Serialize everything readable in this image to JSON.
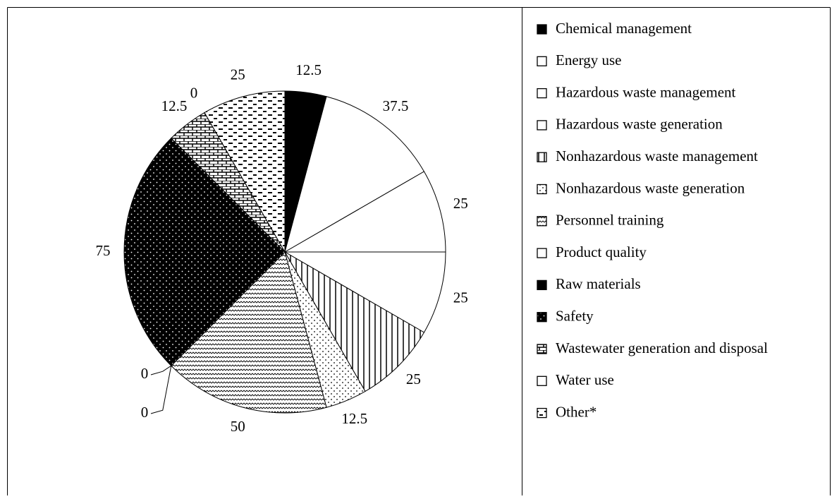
{
  "chart_data": {
    "type": "pie",
    "categories": [
      "Chemical management",
      "Energy use",
      "Hazardous waste management",
      "Hazardous waste generation",
      "Nonhazardous waste management",
      "Nonhazardous waste generation",
      "Personnel training",
      "Product quality",
      "Raw materials",
      "Safety",
      "Wastewater generation and disposal",
      "Water use",
      "Other*"
    ],
    "values": [
      12.5,
      37.5,
      25,
      25,
      25,
      12.5,
      50,
      0,
      0,
      75,
      12.5,
      0,
      25
    ],
    "patterns": [
      "solid",
      "none",
      "none",
      "none",
      "vertical",
      "dots",
      "wave",
      "none",
      "solid",
      "dense-dots",
      "brick",
      "none",
      "dash"
    ],
    "legend": "right"
  }
}
